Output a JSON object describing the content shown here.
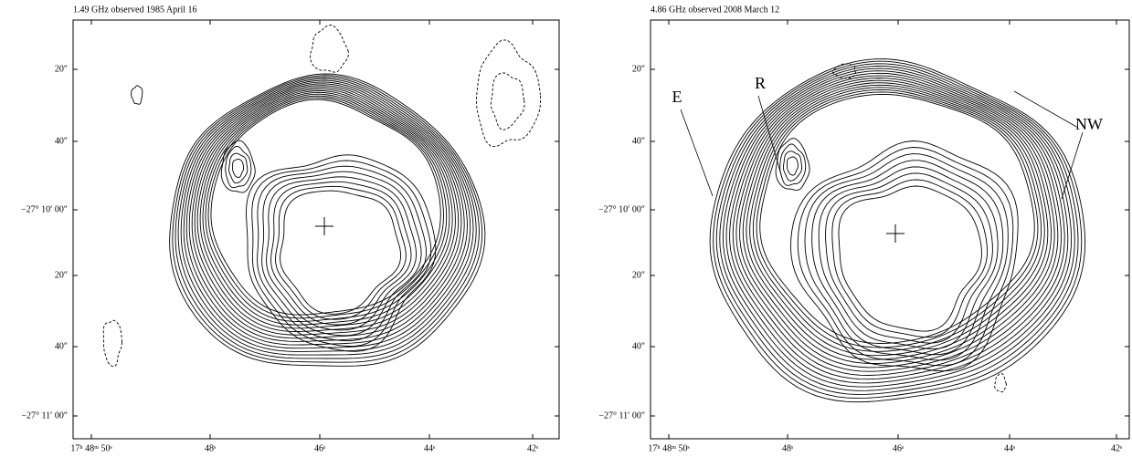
{
  "panels": [
    {
      "title": "1.49 GHz observed 1985 April 16",
      "y_labels": [
        "20″",
        "40″",
        "−27° 10′ 00″",
        "20″",
        "40″",
        "−27° 11′ 00″"
      ],
      "x_labels": [
        "17ʰ 48ᵐ 50ˢ",
        "48ˢ",
        "46ˢ",
        "44ˢ",
        "42ˢ"
      ]
    },
    {
      "title": "4.86 GHz observed 2008 March 12",
      "y_labels": [
        "20″",
        "40″",
        "−27° 10′ 00″",
        "20″",
        "40″",
        "−27° 11′ 00″"
      ],
      "x_labels": [
        "17ʰ 48ᵐ 50ˢ",
        "48ˢ",
        "46ˢ",
        "44ˢ",
        "42ˢ"
      ],
      "annotations": [
        "E",
        "R",
        "NW"
      ]
    }
  ]
}
